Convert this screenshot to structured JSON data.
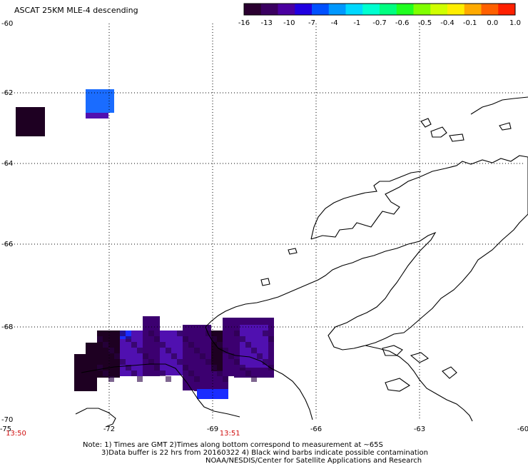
{
  "title": "ASCAT 25KM MLE-4 descending",
  "colorbar": {
    "colors": [
      "#2a0030",
      "#3a0060",
      "#4a00a0",
      "#2000e0",
      "#0050ff",
      "#0098ff",
      "#00d8ff",
      "#00ffd0",
      "#00ff80",
      "#20ff20",
      "#80ff00",
      "#d0ff00",
      "#ffee00",
      "#ffaa00",
      "#ff6000",
      "#ff2000"
    ],
    "labels": [
      "-16",
      "-13",
      "-10",
      "-7",
      "-4",
      "-1",
      "-0.7",
      "-0.6",
      "-0.5",
      "-0.4",
      "-0.1",
      "0.0",
      "1.0"
    ]
  },
  "map": {
    "lon_ticks": [
      "-75",
      "-72",
      "-69",
      "-66",
      "-63",
      "-60"
    ],
    "lat_ticks": [
      "-60",
      "-62",
      "-64",
      "-66",
      "-68",
      "-70"
    ],
    "times": [
      {
        "label": "13:50",
        "lon": -74.7
      },
      {
        "label": "13:51",
        "lon": -68.5
      }
    ]
  },
  "notes": {
    "line1": "Note: 1) Times are GMT 2)Times along bottom correspond to measurement at ~65S",
    "line2": "3)Data buffer is 22 hrs from 20160322 4) Black wind barbs indicate possible contamination",
    "line3": "NOAA/NESDIS/Center for Satellite Applications and Research"
  },
  "legend_colors": {
    "dark": "#1e0022",
    "purple": "#3c0070",
    "violet": "#5010b0",
    "blue": "#1a2cff",
    "skyblue": "#1a6cff"
  }
}
